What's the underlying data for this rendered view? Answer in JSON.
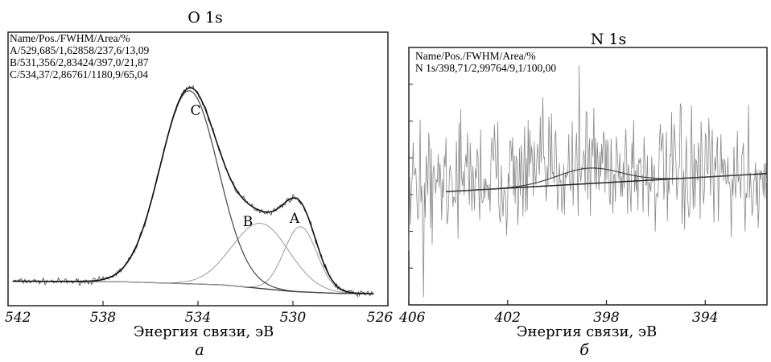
{
  "panels": {
    "a": {
      "letter": "а"
    },
    "b": {
      "letter": "б"
    }
  },
  "chart_data": [
    {
      "type": "line",
      "title": "O 1s",
      "xlabel": "Энергия связи, эВ",
      "ylabel": "",
      "x_reversed": true,
      "xlim": [
        542,
        526
      ],
      "ylim": [
        0,
        1
      ],
      "xticks": [
        542,
        538,
        534,
        530,
        526
      ],
      "xtick_labels": [
        "542",
        "538",
        "534",
        "530",
        "526"
      ],
      "legend_header": "Name/Pos./FWHM/Area/%",
      "legend_lines": [
        "A/529,685/1,62858/237,6/13,09",
        "B/531,356/2,83424/397,0/21,87",
        "C/534,37/2,86761/1180,9/65,04"
      ],
      "components": [
        {
          "name": "A",
          "center": 529.685,
          "fwhm": 1.62858,
          "area": 237.6,
          "percent": 13.09,
          "peak_height": 0.27
        },
        {
          "name": "B",
          "center": 531.356,
          "fwhm": 2.83424,
          "area": 397.0,
          "percent": 21.87,
          "peak_height": 0.27
        },
        {
          "name": "C",
          "center": 534.37,
          "fwhm": 2.86761,
          "area": 1180.9,
          "percent": 65.04,
          "peak_height": 0.8
        }
      ],
      "background": {
        "x": [
          542,
          537,
          533,
          530,
          528,
          526.5
        ],
        "y": [
          0.015,
          0.012,
          0.0,
          -0.028,
          -0.036,
          -0.037
        ]
      }
    },
    {
      "type": "line",
      "title": "N 1s",
      "xlabel": "Энергия связи, эВ",
      "ylabel": "",
      "x_reversed": true,
      "xlim": [
        406,
        391.5
      ],
      "ylim": [
        0,
        1
      ],
      "xticks": [
        406,
        402,
        398,
        394
      ],
      "xtick_labels": [
        "406",
        "402",
        "398",
        "394"
      ],
      "legend_header": "Name/Pos./FWHM/Area/%",
      "legend_lines": [
        "N 1s/398,71/2,99764/9,1/100,00"
      ],
      "components": [
        {
          "name": "N 1s",
          "center": 398.71,
          "fwhm": 2.99764,
          "area": 9.1,
          "percent": 100.0,
          "peak_height": 0.06
        }
      ],
      "background": {
        "x": [
          404.5,
          391.5
        ],
        "y": [
          0.44,
          0.51
        ]
      },
      "noise_level": 0.5
    }
  ]
}
